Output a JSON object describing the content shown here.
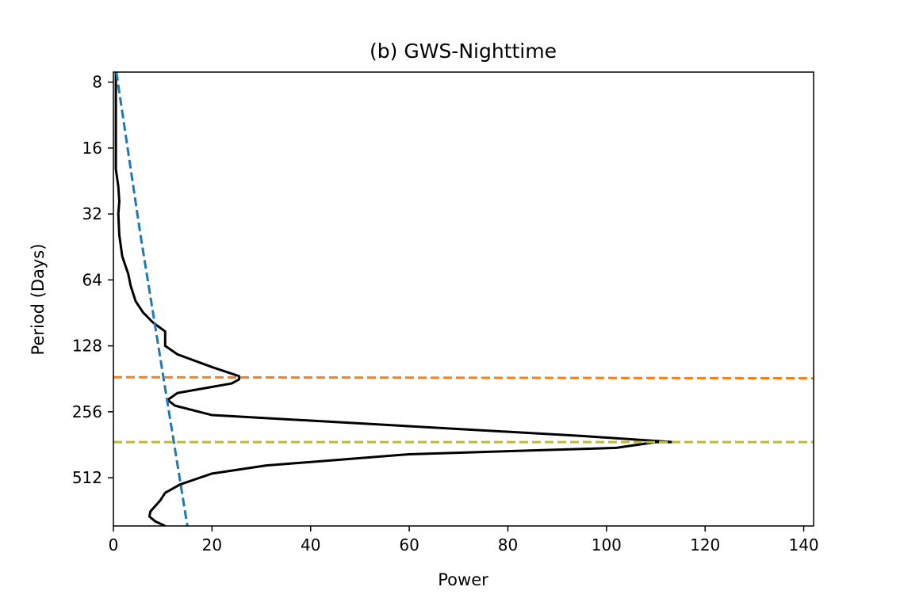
{
  "chart_data": {
    "type": "line",
    "title": "(b) GWS-Nighttime",
    "xlabel": "Power",
    "ylabel": "Period (Days)",
    "xlim": [
      0,
      142
    ],
    "ylim_period_days": [
      850,
      7.2
    ],
    "yscale": "log2",
    "y_inverted": true,
    "xticks": [
      0,
      20,
      40,
      60,
      80,
      100,
      120,
      140
    ],
    "yticks": [
      8,
      16,
      32,
      64,
      128,
      256,
      512
    ],
    "grid": false,
    "legend": "none",
    "series": [
      {
        "color": "#000000",
        "style": "solid",
        "points": [
          [
            0.5,
            7.2
          ],
          [
            0.5,
            8
          ],
          [
            0.5,
            11
          ],
          [
            0.5,
            16
          ],
          [
            0.5,
            20
          ],
          [
            1.0,
            24
          ],
          [
            1.2,
            28
          ],
          [
            1.0,
            32
          ],
          [
            1.2,
            40
          ],
          [
            1.8,
            50
          ],
          [
            3.0,
            60
          ],
          [
            3.5,
            68
          ],
          [
            4.5,
            80
          ],
          [
            6.0,
            90
          ],
          [
            8.0,
            100
          ],
          [
            10.5,
            110
          ],
          [
            10.5,
            117
          ],
          [
            10.5,
            128
          ],
          [
            13.0,
            140
          ],
          [
            20.0,
            160
          ],
          [
            25.5,
            176
          ],
          [
            25.5,
            182
          ],
          [
            24.0,
            190
          ],
          [
            13.0,
            210
          ],
          [
            11.0,
            226
          ],
          [
            12.5,
            240
          ],
          [
            20.0,
            265
          ],
          [
            45.0,
            285
          ],
          [
            95.0,
            330
          ],
          [
            113.5,
            352
          ],
          [
            110.0,
            352
          ],
          [
            102.0,
            374
          ],
          [
            60.0,
            400
          ],
          [
            31.0,
            450
          ],
          [
            20.0,
            490
          ],
          [
            13.5,
            550
          ],
          [
            10.5,
            600
          ],
          [
            9.5,
            650
          ],
          [
            7.5,
            730
          ],
          [
            7.3,
            770
          ],
          [
            8.5,
            810
          ],
          [
            10.5,
            850
          ]
        ]
      },
      {
        "color": "#1f77b4",
        "style": "dashed",
        "points": [
          [
            0.6,
            7.2
          ],
          [
            5.5,
            40
          ],
          [
            15,
            850
          ]
        ]
      },
      {
        "color": "#ff7f0e",
        "style": "dashed",
        "points": [
          [
            0,
            178
          ],
          [
            142,
            180
          ]
        ]
      },
      {
        "color": "#bcbd22",
        "style": "dashed",
        "points": [
          [
            0,
            352
          ],
          [
            142,
            352
          ]
        ]
      }
    ]
  }
}
